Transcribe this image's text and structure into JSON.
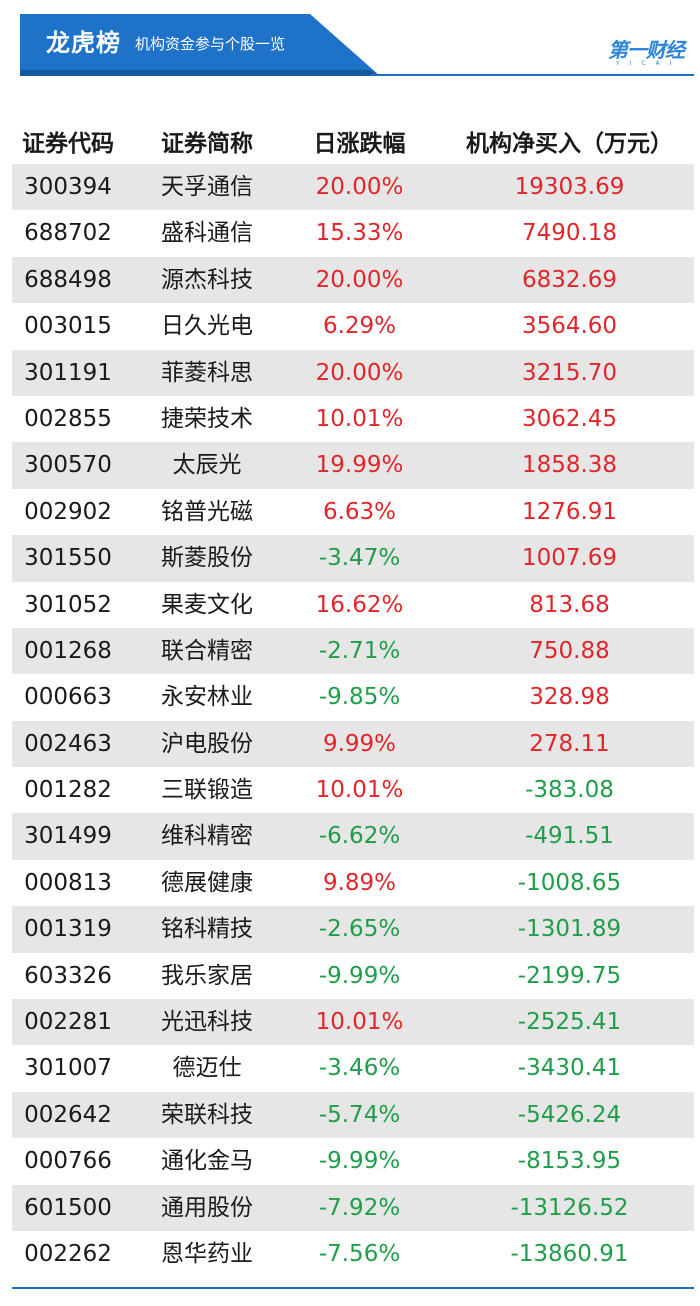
{
  "banner": {
    "title": "龙虎榜",
    "subtitle": "机构资金参与个股一览"
  },
  "logo": {
    "text": "第一财经",
    "sub": "YICAI"
  },
  "colors": {
    "brand_blue": "#1f6fc1",
    "banner_blue": "#1e73c8",
    "up_red": "#e0262a",
    "down_green": "#1f9e4a",
    "row_shade": "#e6e6e6"
  },
  "table": {
    "headers": [
      "证券代码",
      "证券简称",
      "日涨跌幅",
      "机构净买入（万元）"
    ],
    "rows": [
      {
        "code": "300394",
        "name": "天孚通信",
        "change": "20.00%",
        "net_buy": "19303.69",
        "change_dir": "up",
        "net_dir": "up"
      },
      {
        "code": "688702",
        "name": "盛科通信",
        "change": "15.33%",
        "net_buy": "7490.18",
        "change_dir": "up",
        "net_dir": "up"
      },
      {
        "code": "688498",
        "name": "源杰科技",
        "change": "20.00%",
        "net_buy": "6832.69",
        "change_dir": "up",
        "net_dir": "up"
      },
      {
        "code": "003015",
        "name": "日久光电",
        "change": "6.29%",
        "net_buy": "3564.60",
        "change_dir": "up",
        "net_dir": "up"
      },
      {
        "code": "301191",
        "name": "菲菱科思",
        "change": "20.00%",
        "net_buy": "3215.70",
        "change_dir": "up",
        "net_dir": "up"
      },
      {
        "code": "002855",
        "name": "捷荣技术",
        "change": "10.01%",
        "net_buy": "3062.45",
        "change_dir": "up",
        "net_dir": "up"
      },
      {
        "code": "300570",
        "name": "太辰光",
        "change": "19.99%",
        "net_buy": "1858.38",
        "change_dir": "up",
        "net_dir": "up"
      },
      {
        "code": "002902",
        "name": "铭普光磁",
        "change": "6.63%",
        "net_buy": "1276.91",
        "change_dir": "up",
        "net_dir": "up"
      },
      {
        "code": "301550",
        "name": "斯菱股份",
        "change": "-3.47%",
        "net_buy": "1007.69",
        "change_dir": "down",
        "net_dir": "up"
      },
      {
        "code": "301052",
        "name": "果麦文化",
        "change": "16.62%",
        "net_buy": "813.68",
        "change_dir": "up",
        "net_dir": "up"
      },
      {
        "code": "001268",
        "name": "联合精密",
        "change": "-2.71%",
        "net_buy": "750.88",
        "change_dir": "down",
        "net_dir": "up"
      },
      {
        "code": "000663",
        "name": "永安林业",
        "change": "-9.85%",
        "net_buy": "328.98",
        "change_dir": "down",
        "net_dir": "up"
      },
      {
        "code": "002463",
        "name": "沪电股份",
        "change": "9.99%",
        "net_buy": "278.11",
        "change_dir": "up",
        "net_dir": "up"
      },
      {
        "code": "001282",
        "name": "三联锻造",
        "change": "10.01%",
        "net_buy": "-383.08",
        "change_dir": "up",
        "net_dir": "down"
      },
      {
        "code": "301499",
        "name": "维科精密",
        "change": "-6.62%",
        "net_buy": "-491.51",
        "change_dir": "down",
        "net_dir": "down"
      },
      {
        "code": "000813",
        "name": "德展健康",
        "change": "9.89%",
        "net_buy": "-1008.65",
        "change_dir": "up",
        "net_dir": "down"
      },
      {
        "code": "001319",
        "name": "铭科精技",
        "change": "-2.65%",
        "net_buy": "-1301.89",
        "change_dir": "down",
        "net_dir": "down"
      },
      {
        "code": "603326",
        "name": "我乐家居",
        "change": "-9.99%",
        "net_buy": "-2199.75",
        "change_dir": "down",
        "net_dir": "down"
      },
      {
        "code": "002281",
        "name": "光迅科技",
        "change": "10.01%",
        "net_buy": "-2525.41",
        "change_dir": "up",
        "net_dir": "down"
      },
      {
        "code": "301007",
        "name": "德迈仕",
        "change": "-3.46%",
        "net_buy": "-3430.41",
        "change_dir": "down",
        "net_dir": "down"
      },
      {
        "code": "002642",
        "name": "荣联科技",
        "change": "-5.74%",
        "net_buy": "-5426.24",
        "change_dir": "down",
        "net_dir": "down"
      },
      {
        "code": "000766",
        "name": "通化金马",
        "change": "-9.99%",
        "net_buy": "-8153.95",
        "change_dir": "down",
        "net_dir": "down"
      },
      {
        "code": "601500",
        "name": "通用股份",
        "change": "-7.92%",
        "net_buy": "-13126.52",
        "change_dir": "down",
        "net_dir": "down"
      },
      {
        "code": "002262",
        "name": "恩华药业",
        "change": "-7.56%",
        "net_buy": "-13860.91",
        "change_dir": "down",
        "net_dir": "down"
      }
    ]
  }
}
